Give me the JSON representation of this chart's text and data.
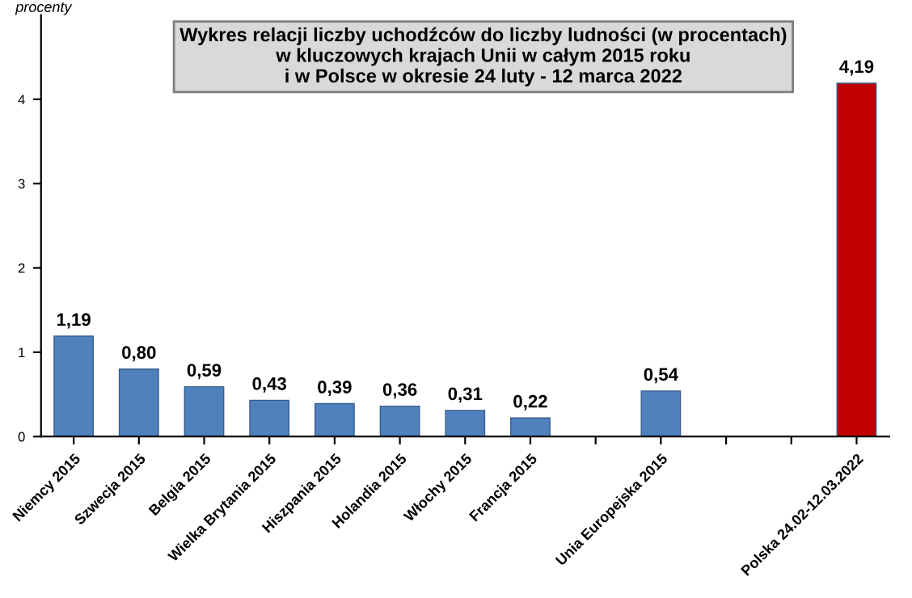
{
  "chart_data": {
    "type": "bar",
    "title": "Wykres relacji liczby uchodźców do liczby ludności (w procentach)\nw kluczowych krajach Unii w całym 2015 roku\ni w Polsce w okresie 24 luty - 12 marca 2022",
    "ylabel": "procenty",
    "categories": [
      "Niemcy 2015",
      "Szwecja 2015",
      "Belgia 2015",
      "Wielka Brytania 2015",
      "Hiszpania 2015",
      "Holandia 2015",
      "Włochy 2015",
      "Francja 2015",
      null,
      "Unia Europejska 2015",
      null,
      null,
      "Polska 24.02-12.03.2022"
    ],
    "values": [
      1.19,
      0.8,
      0.59,
      0.43,
      0.39,
      0.36,
      0.31,
      0.22,
      null,
      0.54,
      null,
      null,
      4.19
    ],
    "colors": [
      "#4f81bd",
      "#4f81bd",
      "#4f81bd",
      "#4f81bd",
      "#4f81bd",
      "#4f81bd",
      "#4f81bd",
      "#4f81bd",
      "#4f81bd",
      "#4f81bd",
      "#4f81bd",
      "#4f81bd",
      "#c00000"
    ],
    "value_labels": [
      "1,19",
      "0,80",
      "0,59",
      "0,43",
      "0,39",
      "0,36",
      "0,31",
      "0,22",
      null,
      "0,54",
      null,
      null,
      "4,19"
    ],
    "ylim": [
      0,
      5
    ],
    "yticks": [
      0,
      1,
      2,
      3,
      4
    ],
    "grid": false,
    "legend": false
  }
}
